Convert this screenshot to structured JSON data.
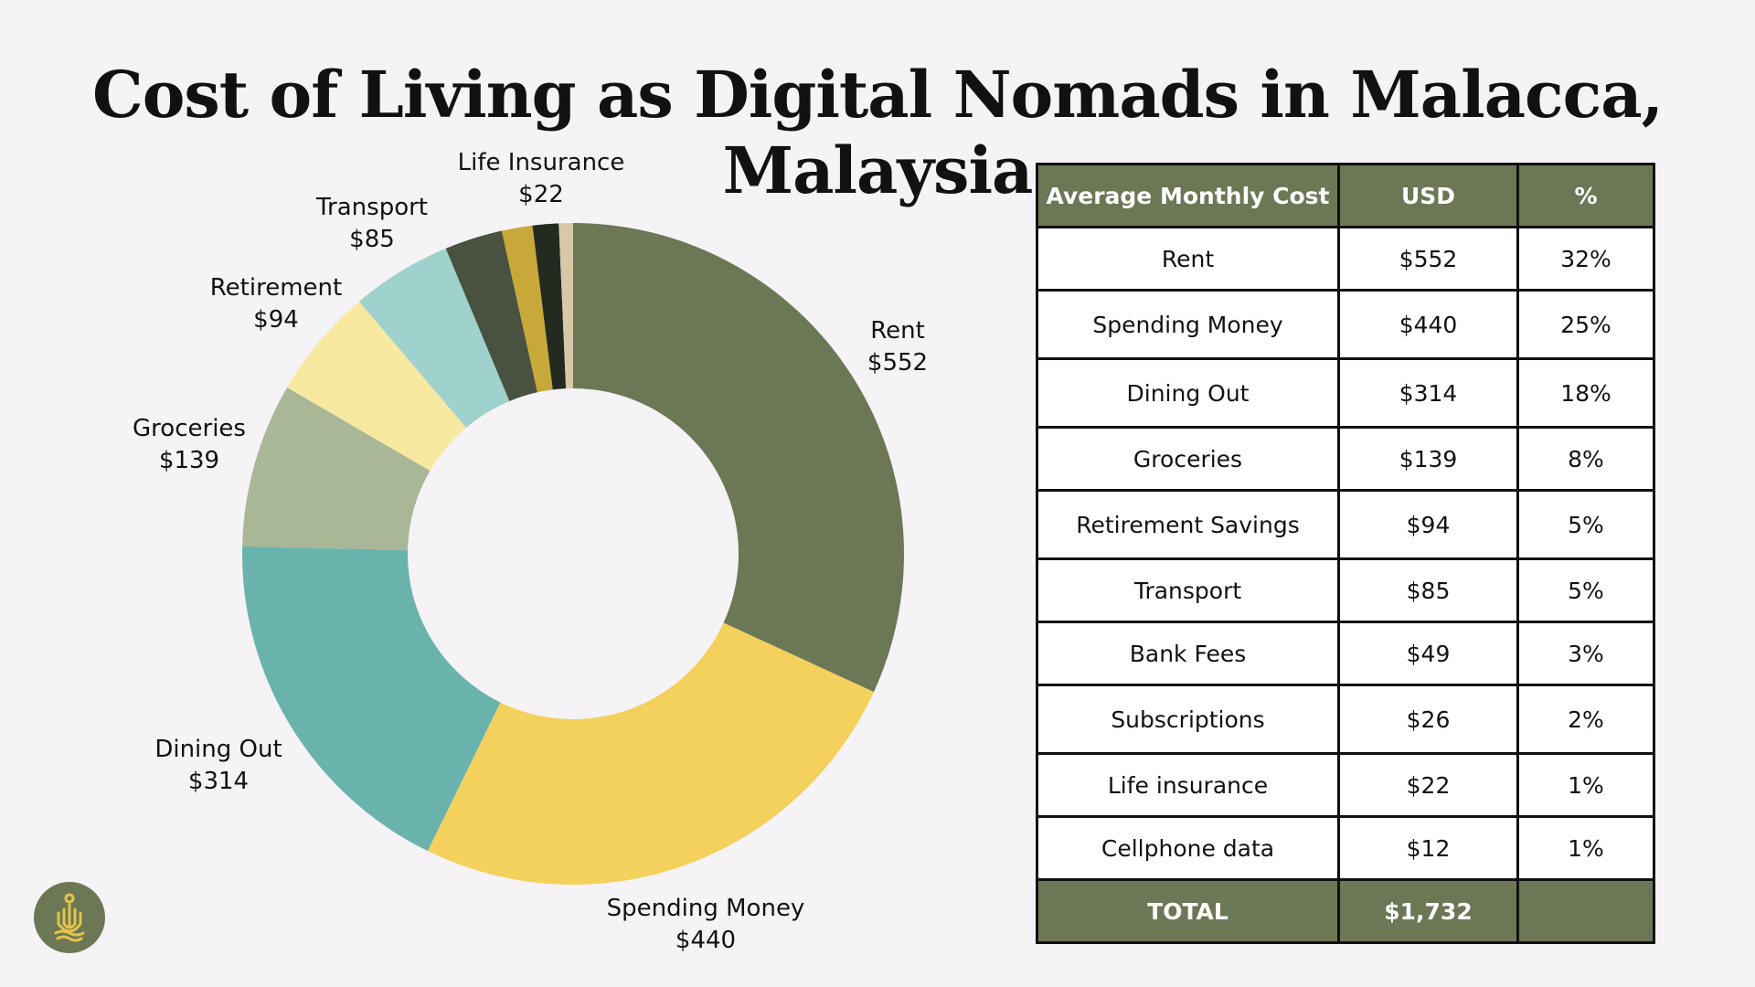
{
  "title": "Cost of Living as Digital Nomads in Malacca, Malaysia",
  "chart_data": {
    "type": "pie",
    "variant": "donut",
    "slices": [
      {
        "label": "Rent",
        "value": 552,
        "value_label": "$552",
        "color": "#6b7755"
      },
      {
        "label": "Spending Money",
        "value": 440,
        "value_label": "$440",
        "color": "#f4d05c"
      },
      {
        "label": "Dining Out",
        "value": 314,
        "value_label": "$314",
        "color": "#6ab3ad"
      },
      {
        "label": "Groceries",
        "value": 139,
        "value_label": "$139",
        "color": "#a9b797"
      },
      {
        "label": "Retirement",
        "value": 94,
        "value_label": "$94",
        "color": "#f8e9a0"
      },
      {
        "label": "Transport",
        "value": 85,
        "value_label": "$85",
        "color": "#9fd1cd"
      },
      {
        "label": "",
        "value": 49,
        "value_label": "",
        "color": "#495240"
      },
      {
        "label": "",
        "value": 26,
        "value_label": "",
        "color": "#c8a838"
      },
      {
        "label": "Life Insurance",
        "value": 22,
        "value_label": "$22",
        "color": "#232a20"
      },
      {
        "label": "",
        "value": 12,
        "value_label": "",
        "color": "#d8c8a8"
      }
    ]
  },
  "table": {
    "headers": [
      "Average Monthly Cost",
      "USD",
      "%"
    ],
    "rows": [
      [
        "Rent",
        "$552",
        "32%"
      ],
      [
        "Spending Money",
        "$440",
        "25%"
      ],
      [
        "Dining Out",
        "$314",
        "18%"
      ],
      [
        "Groceries",
        "$139",
        "8%"
      ],
      [
        "Retirement Savings",
        "$94",
        "5%"
      ],
      [
        "Transport",
        "$85",
        "5%"
      ],
      [
        "Bank Fees",
        "$49",
        "3%"
      ],
      [
        "Subscriptions",
        "$26",
        "2%"
      ],
      [
        "Life insurance",
        "$22",
        "1%"
      ],
      [
        "Cellphone data",
        "$12",
        "1%"
      ]
    ],
    "total": [
      "TOTAL",
      "$1,732",
      ""
    ]
  },
  "logo": {
    "icon": "nomad-logo-icon",
    "color": "#6b7755",
    "accent": "#e6c44a"
  }
}
